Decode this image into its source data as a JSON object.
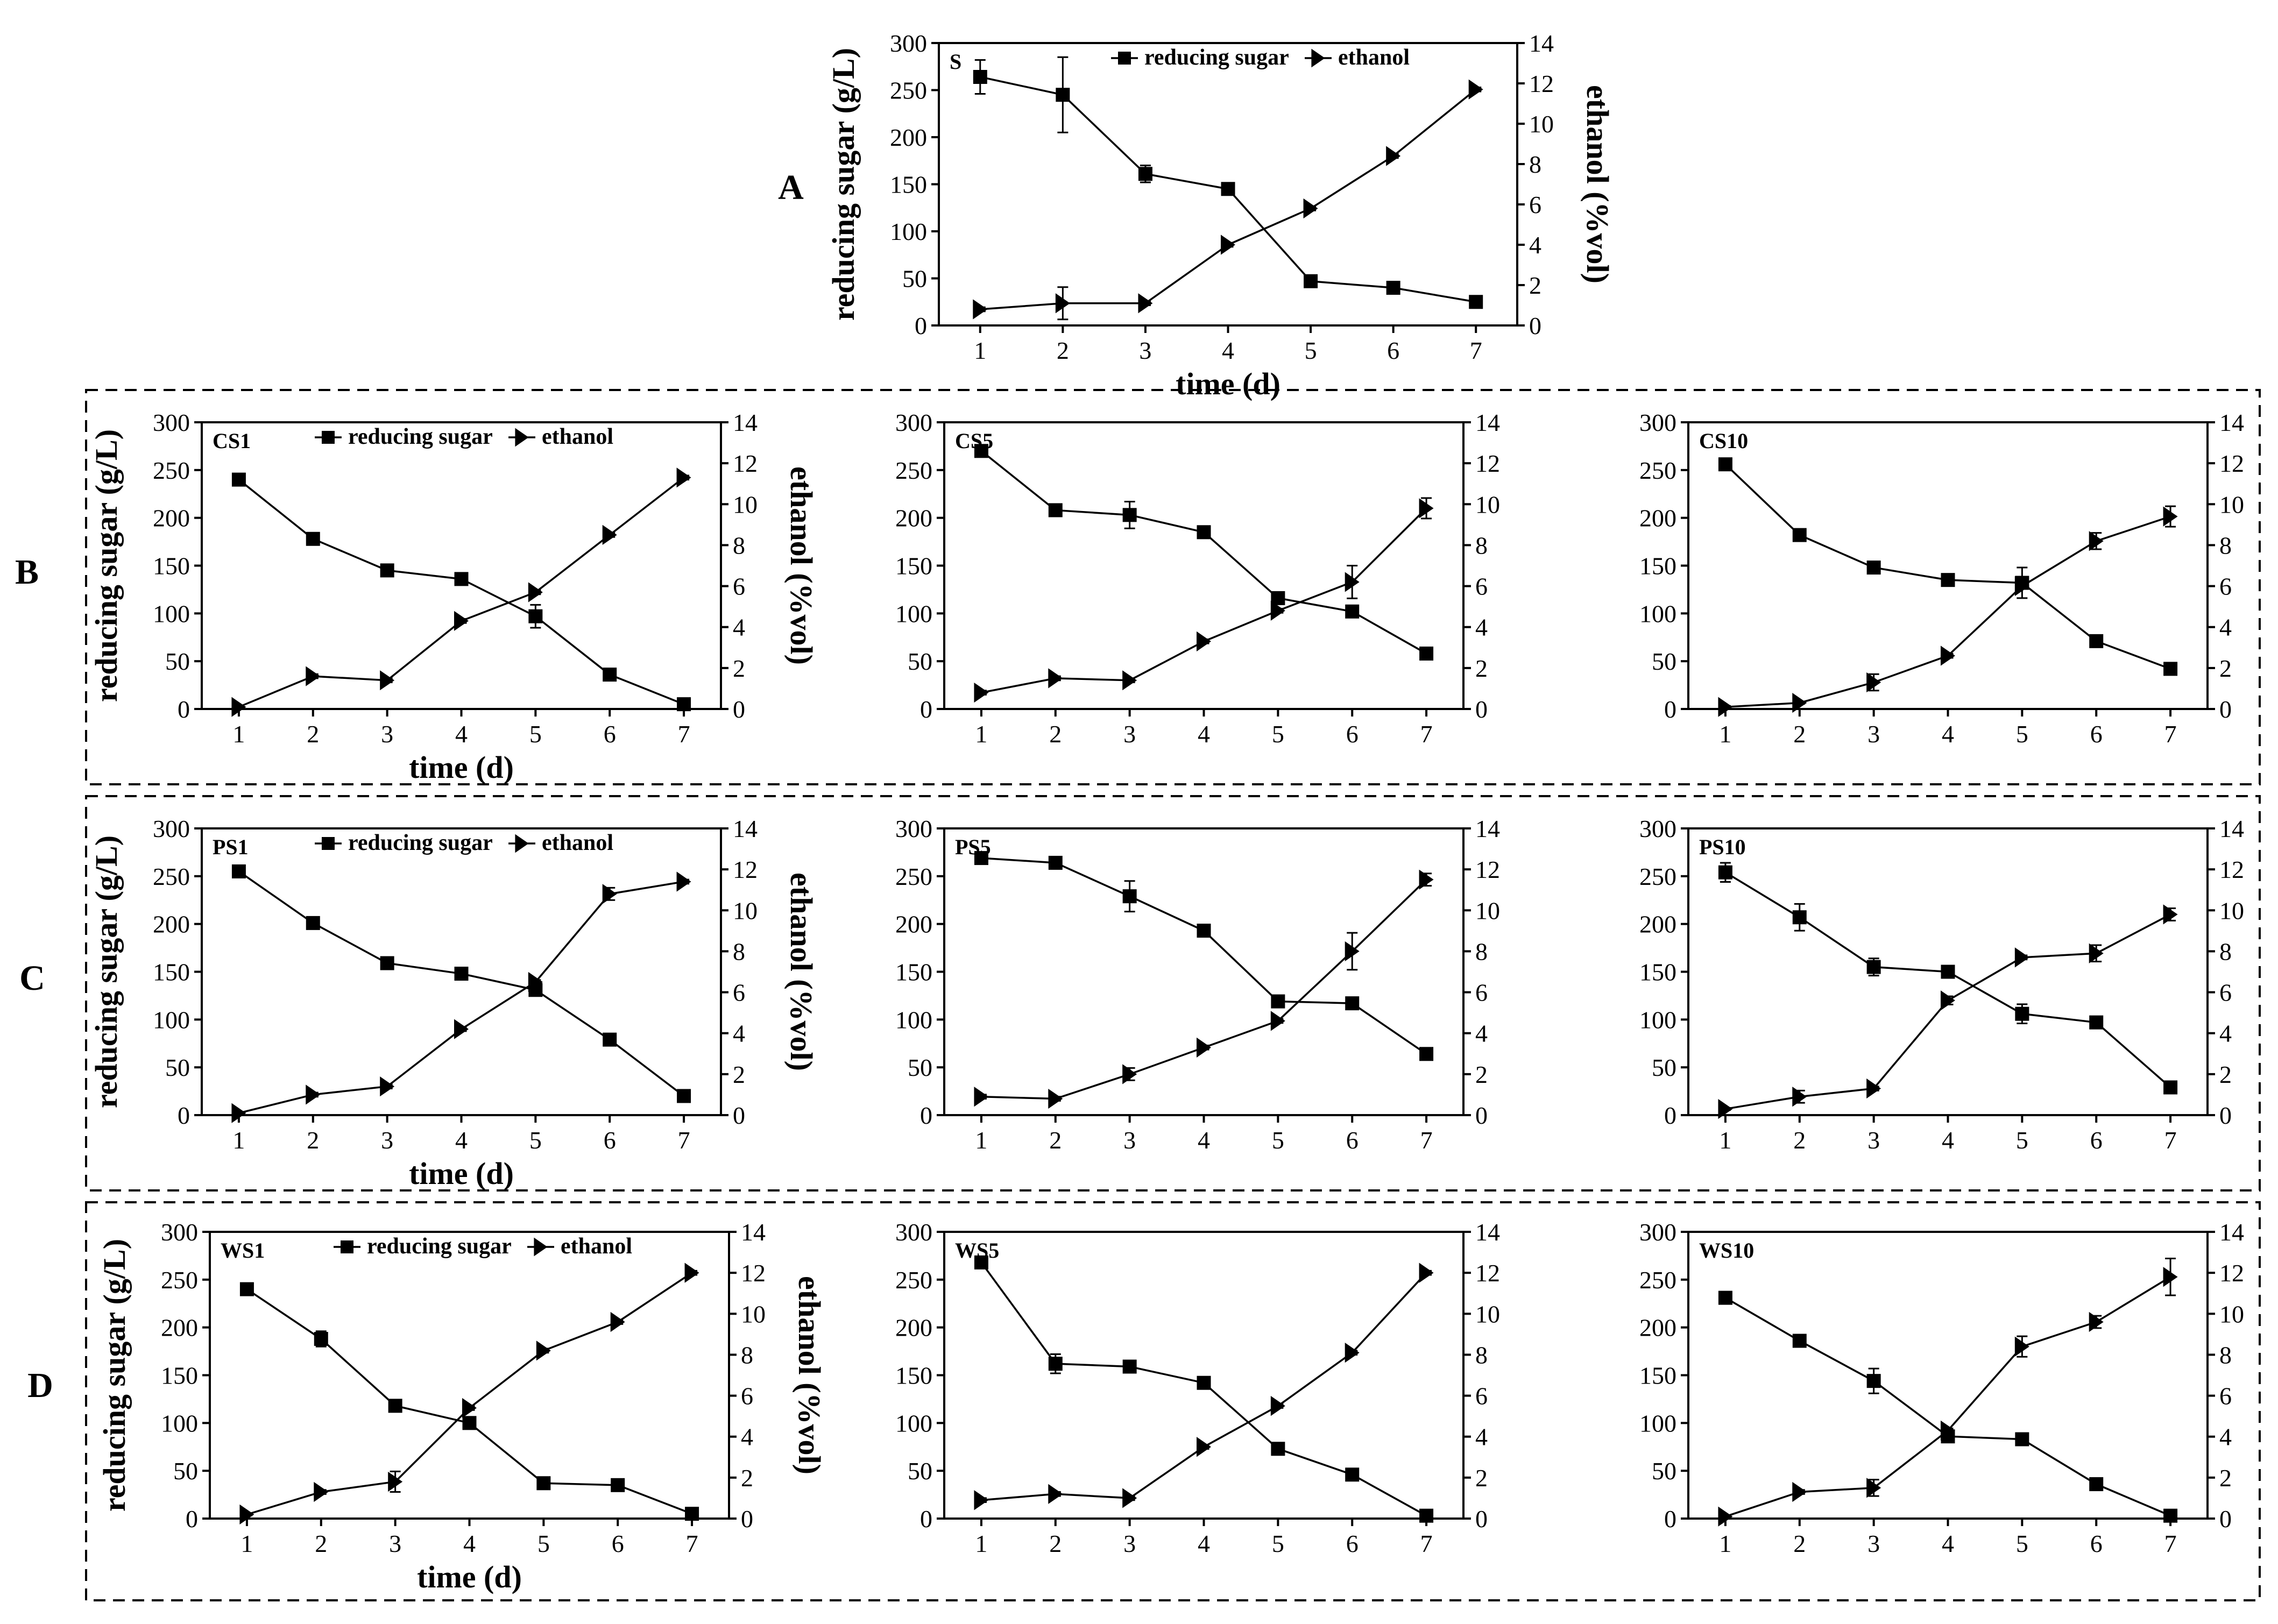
{
  "figure": {
    "row_labels": [
      "A",
      "B",
      "C",
      "D"
    ],
    "legend": {
      "reducing_sugar": "reducing sugar",
      "ethanol": "ethanol"
    },
    "axis_labels": {
      "x": "time (d)",
      "y_left": "reducing sugar (g/L)",
      "y_right": "ethanol (%vol)"
    }
  },
  "chart_data": [
    {
      "type": "line",
      "id": "S",
      "title": "S",
      "row": "A",
      "x": [
        1,
        2,
        3,
        4,
        5,
        6,
        7
      ],
      "xlabel": "time (d)",
      "ylabel": "reducing sugar (g/L)",
      "y2label": "ethanol (%vol)",
      "ylim": [
        0,
        300
      ],
      "y2lim": [
        0,
        14
      ],
      "legend": true,
      "series": [
        {
          "name": "reducing sugar",
          "axis": "left",
          "values": [
            264,
            245,
            161,
            145,
            47,
            40,
            25
          ],
          "errors": [
            18,
            40,
            9,
            4,
            3,
            2,
            2
          ]
        },
        {
          "name": "ethanol",
          "axis": "right",
          "values": [
            0.8,
            1.1,
            1.1,
            4.0,
            5.8,
            8.4,
            11.7
          ],
          "errors": [
            0.1,
            0.8,
            0.1,
            0.1,
            0.1,
            0.1,
            0.1
          ]
        }
      ]
    },
    {
      "type": "line",
      "id": "CS1",
      "title": "CS1",
      "row": "B",
      "x": [
        1,
        2,
        3,
        4,
        5,
        6,
        7
      ],
      "xlabel": "time (d)",
      "ylabel": "reducing sugar (g/L)",
      "y2label": "ethanol (%vol)",
      "ylim": [
        0,
        300
      ],
      "y2lim": [
        0,
        14
      ],
      "legend": true,
      "series": [
        {
          "name": "reducing sugar",
          "axis": "left",
          "values": [
            240,
            178,
            145,
            136,
            97,
            36,
            5
          ],
          "errors": [
            3,
            5,
            6,
            2,
            12,
            2,
            1
          ]
        },
        {
          "name": "ethanol",
          "axis": "right",
          "values": [
            0.1,
            1.6,
            1.4,
            4.3,
            5.7,
            8.5,
            11.3
          ],
          "errors": [
            0.05,
            0.1,
            0.1,
            0.1,
            0.1,
            0.1,
            0.1
          ]
        }
      ]
    },
    {
      "type": "line",
      "id": "CS5",
      "title": "CS5",
      "row": "B",
      "x": [
        1,
        2,
        3,
        4,
        5,
        6,
        7
      ],
      "xlabel": "",
      "ylabel": "",
      "y2label": "",
      "ylim": [
        0,
        300
      ],
      "y2lim": [
        0,
        14
      ],
      "legend": false,
      "series": [
        {
          "name": "reducing sugar",
          "axis": "left",
          "values": [
            270,
            208,
            203,
            185,
            116,
            102,
            58
          ],
          "errors": [
            3,
            2,
            14,
            2,
            3,
            2,
            2
          ]
        },
        {
          "name": "ethanol",
          "axis": "right",
          "values": [
            0.8,
            1.5,
            1.4,
            3.3,
            4.8,
            6.2,
            9.8
          ],
          "errors": [
            0.1,
            0.1,
            0.1,
            0.1,
            0.1,
            0.8,
            0.5
          ]
        }
      ]
    },
    {
      "type": "line",
      "id": "CS10",
      "title": "CS10",
      "row": "B",
      "x": [
        1,
        2,
        3,
        4,
        5,
        6,
        7
      ],
      "xlabel": "",
      "ylabel": "",
      "y2label": "",
      "ylim": [
        0,
        300
      ],
      "y2lim": [
        0,
        14
      ],
      "legend": false,
      "series": [
        {
          "name": "reducing sugar",
          "axis": "left",
          "values": [
            256,
            182,
            148,
            135,
            132,
            71,
            42
          ],
          "errors": [
            3,
            2,
            6,
            2,
            16,
            2,
            2
          ]
        },
        {
          "name": "ethanol",
          "axis": "right",
          "values": [
            0.1,
            0.3,
            1.3,
            2.6,
            6.0,
            8.2,
            9.4
          ],
          "errors": [
            0.05,
            0.05,
            0.4,
            0.1,
            0.1,
            0.4,
            0.5
          ]
        }
      ]
    },
    {
      "type": "line",
      "id": "PS1",
      "title": "PS1",
      "row": "C",
      "x": [
        1,
        2,
        3,
        4,
        5,
        6,
        7
      ],
      "xlabel": "time (d)",
      "ylabel": "reducing sugar (g/L)",
      "y2label": "ethanol (%vol)",
      "ylim": [
        0,
        300
      ],
      "y2lim": [
        0,
        14
      ],
      "legend": true,
      "series": [
        {
          "name": "reducing sugar",
          "axis": "left",
          "values": [
            255,
            201,
            159,
            148,
            131,
            79,
            20
          ],
          "errors": [
            3,
            2,
            2,
            5,
            5,
            2,
            2
          ]
        },
        {
          "name": "ethanol",
          "axis": "right",
          "values": [
            0.1,
            1.0,
            1.4,
            4.2,
            6.5,
            10.8,
            11.4
          ],
          "errors": [
            0.05,
            0.1,
            0.1,
            0.1,
            0.1,
            0.3,
            0.1
          ]
        }
      ]
    },
    {
      "type": "line",
      "id": "PS5",
      "title": "PS5",
      "row": "C",
      "x": [
        1,
        2,
        3,
        4,
        5,
        6,
        7
      ],
      "xlabel": "",
      "ylabel": "",
      "y2label": "",
      "ylim": [
        0,
        300
      ],
      "y2lim": [
        0,
        14
      ],
      "legend": false,
      "series": [
        {
          "name": "reducing sugar",
          "axis": "left",
          "values": [
            269,
            264,
            229,
            193,
            119,
            117,
            64
          ],
          "errors": [
            2,
            2,
            16,
            3,
            2,
            2,
            2
          ]
        },
        {
          "name": "ethanol",
          "axis": "right",
          "values": [
            0.9,
            0.8,
            2.0,
            3.3,
            4.6,
            8.0,
            11.5
          ],
          "errors": [
            0.1,
            0.1,
            0.3,
            0.1,
            0.1,
            0.9,
            0.3
          ]
        }
      ]
    },
    {
      "type": "line",
      "id": "PS10",
      "title": "PS10",
      "row": "C",
      "x": [
        1,
        2,
        3,
        4,
        5,
        6,
        7
      ],
      "xlabel": "",
      "ylabel": "",
      "y2label": "",
      "ylim": [
        0,
        300
      ],
      "y2lim": [
        0,
        14
      ],
      "legend": false,
      "series": [
        {
          "name": "reducing sugar",
          "axis": "left",
          "values": [
            254,
            207,
            155,
            150,
            106,
            97,
            29
          ],
          "errors": [
            10,
            14,
            9,
            2,
            10,
            2,
            2
          ]
        },
        {
          "name": "ethanol",
          "axis": "right",
          "values": [
            0.3,
            0.9,
            1.3,
            5.6,
            7.7,
            7.9,
            9.8
          ],
          "errors": [
            0.05,
            0.3,
            0.1,
            0.2,
            0.1,
            0.4,
            0.3
          ]
        }
      ]
    },
    {
      "type": "line",
      "id": "WS1",
      "title": "WS1",
      "row": "D",
      "x": [
        1,
        2,
        3,
        4,
        5,
        6,
        7
      ],
      "xlabel": "time (d)",
      "ylabel": "reducing sugar (g/L)",
      "y2label": "ethanol (%vol)",
      "ylim": [
        0,
        300
      ],
      "y2lim": [
        0,
        14
      ],
      "legend": true,
      "series": [
        {
          "name": "reducing sugar",
          "axis": "left",
          "values": [
            240,
            188,
            118,
            100,
            37,
            35,
            5
          ],
          "errors": [
            3,
            8,
            2,
            2,
            5,
            2,
            1
          ]
        },
        {
          "name": "ethanol",
          "axis": "right",
          "values": [
            0.2,
            1.3,
            1.8,
            5.4,
            8.2,
            9.6,
            12.0
          ],
          "errors": [
            0.05,
            0.1,
            0.5,
            0.1,
            0.1,
            0.1,
            0.1
          ]
        }
      ]
    },
    {
      "type": "line",
      "id": "WS5",
      "title": "WS5",
      "row": "D",
      "x": [
        1,
        2,
        3,
        4,
        5,
        6,
        7
      ],
      "xlabel": "",
      "ylabel": "",
      "y2label": "",
      "ylim": [
        0,
        300
      ],
      "y2lim": [
        0,
        14
      ],
      "legend": false,
      "series": [
        {
          "name": "reducing sugar",
          "axis": "left",
          "values": [
            268,
            162,
            159,
            142,
            73,
            46,
            3
          ],
          "errors": [
            6,
            10,
            2,
            2,
            2,
            2,
            1
          ]
        },
        {
          "name": "ethanol",
          "axis": "right",
          "values": [
            0.9,
            1.2,
            1.0,
            3.5,
            5.5,
            8.1,
            12.0
          ],
          "errors": [
            0.1,
            0.1,
            0.1,
            0.1,
            0.1,
            0.1,
            0.1
          ]
        }
      ]
    },
    {
      "type": "line",
      "id": "WS10",
      "title": "WS10",
      "row": "D",
      "x": [
        1,
        2,
        3,
        4,
        5,
        6,
        7
      ],
      "xlabel": "",
      "ylabel": "",
      "y2label": "",
      "ylim": [
        0,
        300
      ],
      "y2lim": [
        0,
        14
      ],
      "legend": false,
      "series": [
        {
          "name": "reducing sugar",
          "axis": "left",
          "values": [
            231,
            186,
            144,
            86,
            83,
            36,
            3
          ],
          "errors": [
            3,
            2,
            13,
            3,
            2,
            2,
            1
          ]
        },
        {
          "name": "ethanol",
          "axis": "right",
          "values": [
            0.1,
            1.3,
            1.5,
            4.3,
            8.4,
            9.6,
            11.8
          ],
          "errors": [
            0.05,
            0.1,
            0.4,
            0.1,
            0.5,
            0.3,
            0.9
          ]
        }
      ]
    }
  ]
}
